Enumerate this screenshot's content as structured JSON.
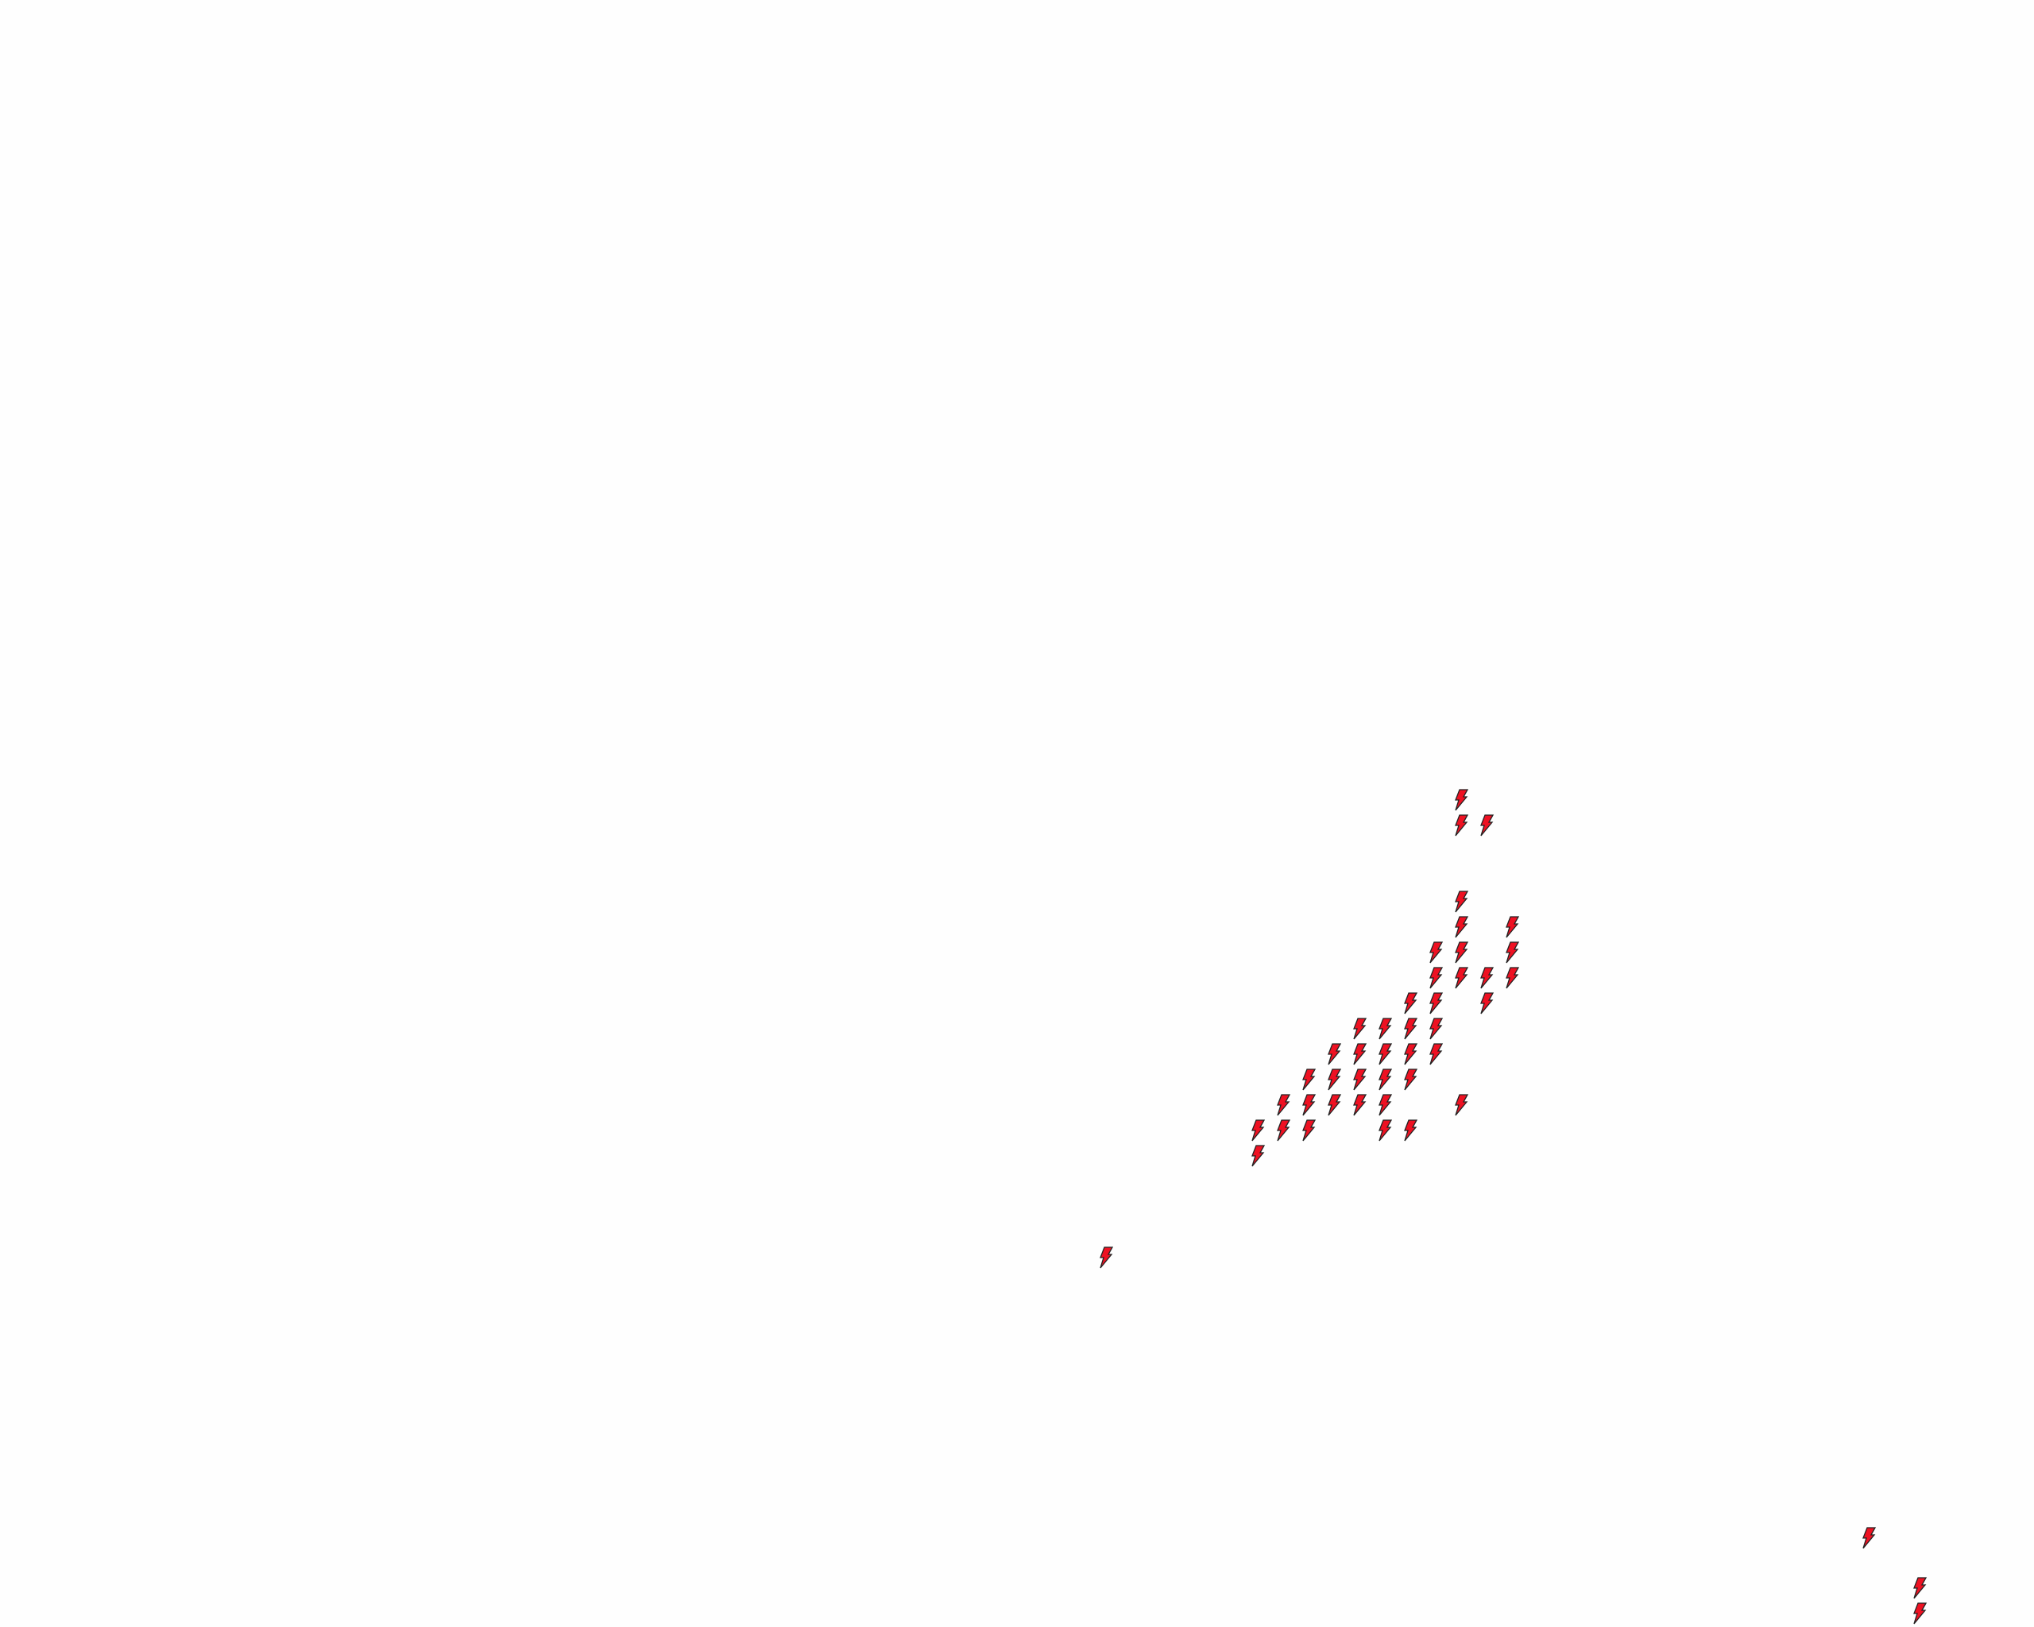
{
  "map": {
    "background_color": "#fefefe",
    "marker": {
      "icon": "lightning-bolt-icon",
      "fill_color": "#ee1122",
      "stroke_color": "#222222"
    }
  }
}
